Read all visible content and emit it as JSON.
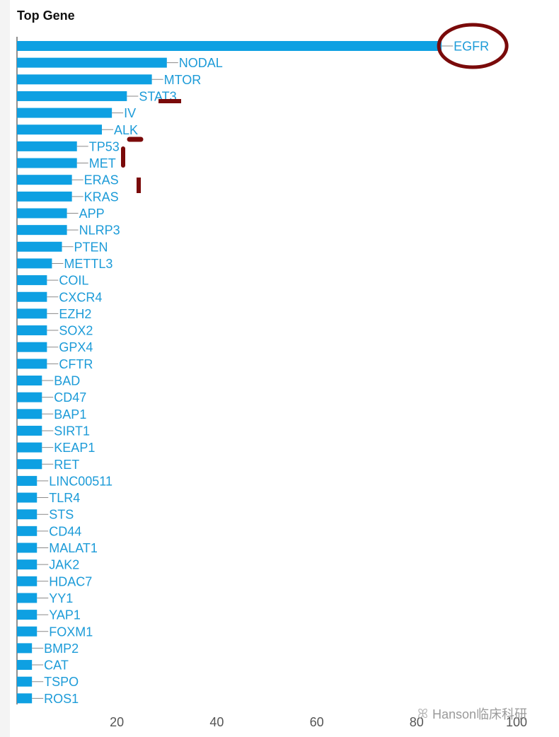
{
  "title": "Top Gene",
  "watermark": "Hanson临床科研",
  "chart_data": {
    "type": "bar",
    "orientation": "horizontal",
    "title": "Top Gene",
    "xlabel": "",
    "ylabel": "",
    "xlim": [
      0,
      100
    ],
    "x_ticks": [
      20,
      40,
      60,
      80,
      100
    ],
    "grid": false,
    "bar_color": "#0ea0e2",
    "label_color": "#1c9bd8",
    "categories": [
      "EGFR",
      "NODAL",
      "MTOR",
      "STAT3",
      "IV",
      "ALK",
      "TP53",
      "MET",
      "ERAS",
      "KRAS",
      "APP",
      "NLRP3",
      "PTEN",
      "METTL3",
      "COIL",
      "CXCR4",
      "EZH2",
      "SOX2",
      "GPX4",
      "CFTR",
      "BAD",
      "CD47",
      "BAP1",
      "SIRT1",
      "KEAP1",
      "RET",
      "LINC00511",
      "TLR4",
      "STS",
      "CD44",
      "MALAT1",
      "JAK2",
      "HDAC7",
      "YY1",
      "YAP1",
      "FOXM1",
      "BMP2",
      "CAT",
      "TSPO",
      "ROS1"
    ],
    "values": [
      85,
      30,
      27,
      22,
      19,
      17,
      12,
      12,
      11,
      11,
      10,
      10,
      9,
      7,
      6,
      6,
      6,
      6,
      6,
      6,
      5,
      5,
      5,
      5,
      5,
      5,
      4,
      4,
      4,
      4,
      4,
      4,
      4,
      4,
      4,
      4,
      3,
      3,
      3,
      3
    ]
  },
  "annotations": {
    "circle_color": "#7a0a0a",
    "circled_label": "EGFR"
  }
}
